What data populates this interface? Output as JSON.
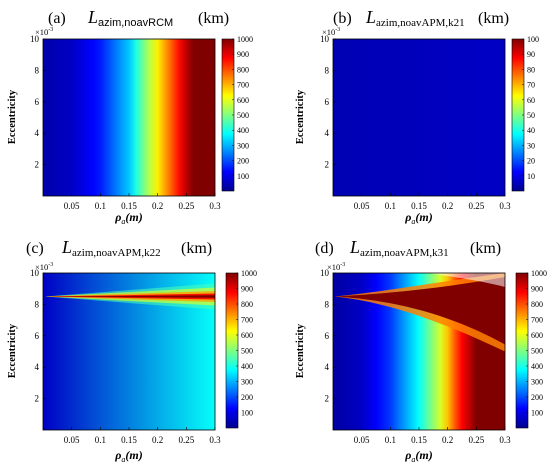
{
  "colors": {
    "jet": [
      "#00008f",
      "#0000ff",
      "#0080ff",
      "#00ffff",
      "#80ff80",
      "#ffff00",
      "#ff8000",
      "#ff0000",
      "#800000"
    ]
  },
  "chart_data": [
    {
      "type": "heatmap",
      "panel_tag": "(a)",
      "title_symbol": "L",
      "title_subscript": "azim,noavRCM",
      "title_unit": "(km)",
      "xlabel_symbol": "ρ",
      "xlabel_subscript": "a",
      "xlabel_unit": "(m)",
      "ylabel": "Eccentricity",
      "y_exponent_base": "×10",
      "y_exponent_power": "-3",
      "xlim": [
        0,
        0.3
      ],
      "ylim": [
        0,
        0.01
      ],
      "xticks": [
        0.05,
        0.1,
        0.15,
        0.2,
        0.25,
        0.3
      ],
      "xtick_labels": [
        "0.05",
        "0.1",
        "0.15",
        "0.2",
        "0.25",
        "0.3"
      ],
      "yticks": [
        0.002,
        0.004,
        0.006,
        0.008,
        0.01
      ],
      "ytick_labels": [
        "2",
        "4",
        "6",
        "8",
        "10"
      ],
      "colorbar": {
        "min": 0,
        "max": 1000,
        "ticks": [
          100,
          200,
          300,
          400,
          500,
          600,
          700,
          800,
          900,
          1000
        ],
        "labels": [
          "100",
          "200",
          "300",
          "400",
          "500",
          "600",
          "700",
          "800",
          "900",
          "1000"
        ]
      },
      "pattern": "x-gradient",
      "profile_x": [
        0,
        0.05,
        0.1,
        0.15,
        0.18,
        0.21,
        0.24,
        0.26,
        0.3
      ],
      "profile_value": [
        30,
        60,
        150,
        320,
        520,
        700,
        880,
        1000,
        1000
      ]
    },
    {
      "type": "heatmap",
      "panel_tag": "(b)",
      "title_symbol": "L",
      "title_subscript": "azim,noavAPM,k21",
      "title_unit": "(km)",
      "xlabel_symbol": "ρ",
      "xlabel_subscript": "a",
      "xlabel_unit": "(m)",
      "ylabel": "Eccentricity",
      "y_exponent_base": "×10",
      "y_exponent_power": "-3",
      "xlim": [
        0,
        0.3
      ],
      "ylim": [
        0,
        0.01
      ],
      "xticks": [
        0.05,
        0.1,
        0.15,
        0.2,
        0.25,
        0.3
      ],
      "xtick_labels": [
        "0.05",
        "0.1",
        "0.15",
        "0.2",
        "0.25",
        "0.3"
      ],
      "yticks": [
        0.002,
        0.004,
        0.006,
        0.008,
        0.01
      ],
      "ytick_labels": [
        "2",
        "4",
        "6",
        "8",
        "10"
      ],
      "colorbar": {
        "min": 0,
        "max": 100,
        "ticks": [
          10,
          20,
          30,
          40,
          50,
          60,
          70,
          80,
          90,
          100
        ],
        "labels": [
          "10",
          "20",
          "30",
          "40",
          "50",
          "60",
          "70",
          "80",
          "90",
          "100"
        ]
      },
      "pattern": "x-gradient",
      "profile_x": [
        0,
        0.3
      ],
      "profile_value": [
        4,
        6
      ]
    },
    {
      "type": "heatmap",
      "panel_tag": "(c)",
      "title_symbol": "L",
      "title_subscript": "azim,noavAPM,k22",
      "title_unit": "(km)",
      "xlabel_symbol": "ρ",
      "xlabel_subscript": "a",
      "xlabel_unit": "(m)",
      "ylabel": "Eccentricity",
      "y_exponent_base": "×10",
      "y_exponent_power": "-3",
      "xlim": [
        0,
        0.3
      ],
      "ylim": [
        0,
        0.01
      ],
      "xticks": [
        0.05,
        0.1,
        0.15,
        0.2,
        0.25,
        0.3
      ],
      "xtick_labels": [
        "0.05",
        "0.1",
        "0.15",
        "0.2",
        "0.25",
        "0.3"
      ],
      "yticks": [
        0.002,
        0.004,
        0.006,
        0.008,
        0.01
      ],
      "ytick_labels": [
        "2",
        "4",
        "6",
        "8",
        "10"
      ],
      "colorbar": {
        "min": 0,
        "max": 1000,
        "ticks": [
          100,
          200,
          300,
          400,
          500,
          600,
          700,
          800,
          900,
          1000
        ],
        "labels": [
          "100",
          "200",
          "300",
          "400",
          "500",
          "600",
          "700",
          "800",
          "900",
          "1000"
        ]
      },
      "pattern": "resonance",
      "resonance_eccentricity": 0.0085,
      "base_profile_value": [
        60,
        380
      ]
    },
    {
      "type": "heatmap",
      "panel_tag": "(d)",
      "title_symbol": "L",
      "title_subscript": "azim,noavAPM,k31",
      "title_unit": "(km)",
      "xlabel_symbol": "ρ",
      "xlabel_subscript": "a",
      "xlabel_unit": "(m)",
      "ylabel": "Eccentricity",
      "y_exponent_base": "×10",
      "y_exponent_power": "-3",
      "xlim": [
        0,
        0.3
      ],
      "ylim": [
        0,
        0.01
      ],
      "xticks": [
        0.05,
        0.1,
        0.15,
        0.2,
        0.25,
        0.3
      ],
      "xtick_labels": [
        "0.05",
        "0.1",
        "0.15",
        "0.2",
        "0.25",
        "0.3"
      ],
      "yticks": [
        0.002,
        0.004,
        0.006,
        0.008,
        0.01
      ],
      "ytick_labels": [
        "2",
        "4",
        "6",
        "8",
        "10"
      ],
      "colorbar": {
        "min": 0,
        "max": 1000,
        "ticks": [
          100,
          200,
          300,
          400,
          500,
          600,
          700,
          800,
          900,
          1000
        ],
        "labels": [
          "100",
          "200",
          "300",
          "400",
          "500",
          "600",
          "700",
          "800",
          "900",
          "1000"
        ]
      },
      "pattern": "wedge",
      "resonance_eccentricity": 0.0085,
      "profile_x": [
        0,
        0.05,
        0.1,
        0.15,
        0.19,
        0.22,
        0.25,
        0.3
      ],
      "profile_value": [
        20,
        60,
        180,
        380,
        600,
        850,
        1000,
        1000
      ]
    }
  ]
}
